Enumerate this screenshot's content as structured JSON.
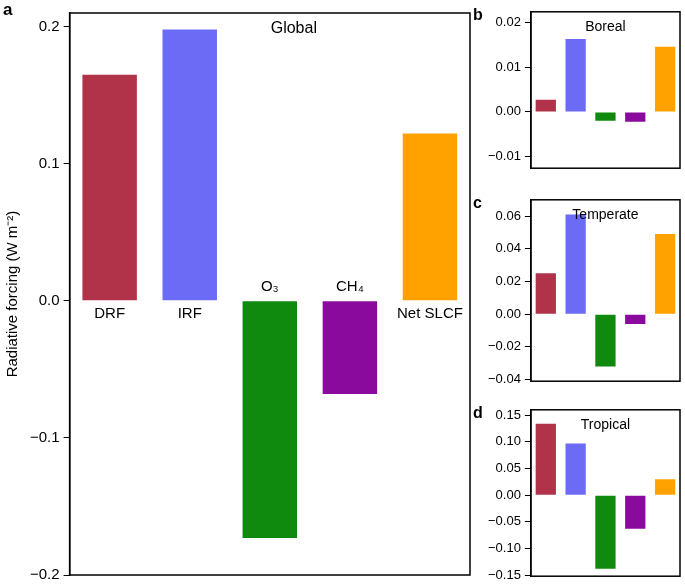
{
  "chart_data": [
    {
      "type": "bar",
      "panel_label": "a",
      "title": "Global",
      "y_label": "Radiative forcing (W m⁻²)",
      "categories": [
        "DRF",
        "IRF",
        "O₃",
        "CH₄",
        "Net SLCF"
      ],
      "values": [
        0.165,
        0.198,
        -0.173,
        -0.068,
        0.122
      ],
      "colors": [
        "#b0334a",
        "#6b6bf5",
        "#0f8a0f",
        "#8b0a9e",
        "#ffa200"
      ],
      "ylim": [
        -0.2,
        0.21
      ],
      "yticks": [
        {
          "value": -0.2,
          "label": "−0.2"
        },
        {
          "value": -0.1,
          "label": "−0.1"
        },
        {
          "value": 0,
          "label": "0.0"
        },
        {
          "value": 0.1,
          "label": "0.1"
        },
        {
          "value": 0.2,
          "label": "0.2"
        }
      ],
      "grid": false
    },
    {
      "type": "bar",
      "panel_label": "b",
      "title": "Boreal",
      "categories": [
        null,
        null,
        null,
        null,
        null
      ],
      "values": [
        0.0027,
        0.0163,
        -0.002,
        -0.0022,
        0.0146
      ],
      "colors": [
        "#b0334a",
        "#6b6bf5",
        "#0f8a0f",
        "#8b0a9e",
        "#ffa200"
      ],
      "ylim": [
        -0.0126,
        0.0224
      ],
      "yticks": [
        {
          "value": -0.01,
          "label": "−0.01"
        },
        {
          "value": 0,
          "label": "0.00"
        },
        {
          "value": 0.01,
          "label": "0.01"
        },
        {
          "value": 0.02,
          "label": "0.02"
        }
      ],
      "grid": false
    },
    {
      "type": "bar",
      "panel_label": "c",
      "title": "Temperate",
      "categories": [
        null,
        null,
        null,
        null,
        null
      ],
      "values": [
        0.025,
        0.061,
        -0.032,
        -0.006,
        0.049
      ],
      "colors": [
        "#b0334a",
        "#6b6bf5",
        "#0f8a0f",
        "#8b0a9e",
        "#ffa200"
      ],
      "ylim": [
        -0.041,
        0.07
      ],
      "yticks": [
        {
          "value": -0.04,
          "label": "−0.04"
        },
        {
          "value": -0.02,
          "label": "−0.02"
        },
        {
          "value": 0,
          "label": "0.00"
        },
        {
          "value": 0.02,
          "label": "0.02"
        },
        {
          "value": 0.04,
          "label": "0.04"
        },
        {
          "value": 0.06,
          "label": "0.06"
        }
      ],
      "grid": false
    },
    {
      "type": "bar",
      "panel_label": "d",
      "title": "Tropical",
      "categories": [
        null,
        null,
        null,
        null,
        null
      ],
      "values": [
        0.134,
        0.097,
        -0.138,
        -0.063,
        0.03
      ],
      "colors": [
        "#b0334a",
        "#6b6bf5",
        "#0f8a0f",
        "#8b0a9e",
        "#ffa200"
      ],
      "ylim": [
        -0.152,
        0.16
      ],
      "yticks": [
        {
          "value": -0.15,
          "label": "−0.15"
        },
        {
          "value": -0.1,
          "label": "−0.10"
        },
        {
          "value": -0.05,
          "label": "−0.05"
        },
        {
          "value": 0,
          "label": "0.00"
        },
        {
          "value": 0.05,
          "label": "0.05"
        },
        {
          "value": 0.1,
          "label": "0.10"
        },
        {
          "value": 0.15,
          "label": "0.15"
        }
      ],
      "grid": false
    }
  ]
}
